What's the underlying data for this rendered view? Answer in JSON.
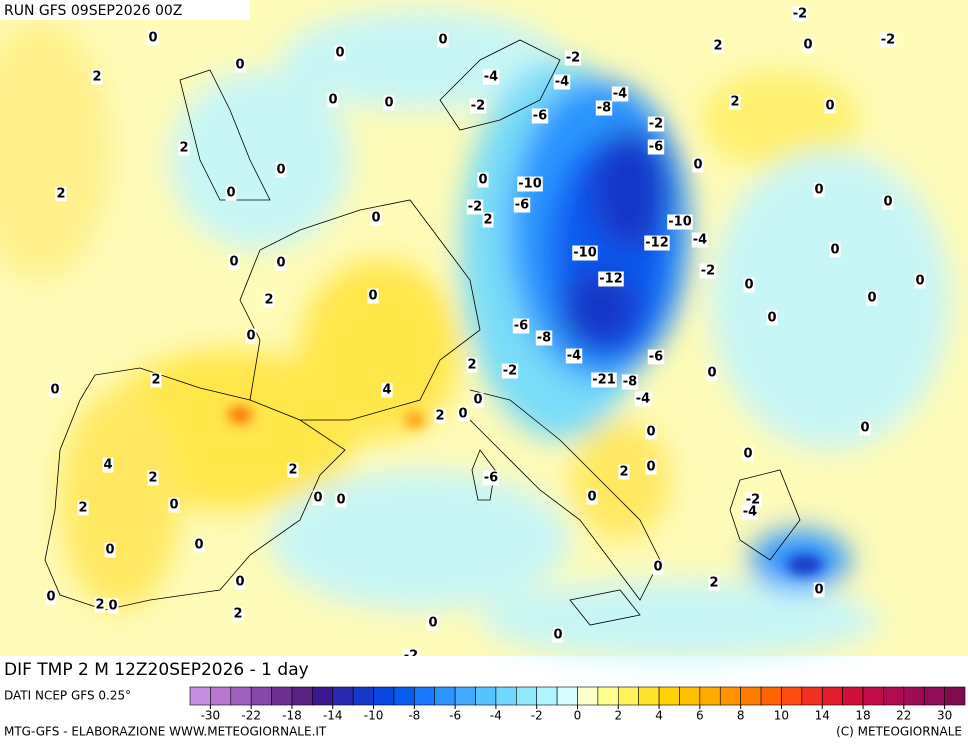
{
  "header": {
    "run": "RUN GFS 09SEP2026 00Z"
  },
  "map": {
    "title": "DIF TMP 2 M 12Z20SEP2026 - 1 day",
    "contour_labels": [
      0,
      0,
      0,
      2,
      0,
      0,
      2,
      0,
      0,
      2,
      -2,
      -2,
      -2,
      2,
      0,
      -4,
      -4,
      -2,
      -6,
      -8,
      -4,
      -2,
      -6,
      0,
      0,
      0,
      -10,
      -6,
      -2,
      2,
      0,
      -10,
      -12,
      -4,
      -2,
      0,
      0,
      -10,
      -12,
      0,
      2,
      0,
      0,
      -6,
      -8,
      0,
      0,
      2,
      -2,
      -4,
      -6,
      0,
      2,
      -21,
      -8,
      0,
      -4,
      0,
      0,
      0,
      4,
      2,
      0,
      2,
      0,
      0,
      4,
      2,
      0,
      0,
      2,
      0,
      -2,
      -4,
      0,
      0,
      2,
      0,
      0,
      2,
      0,
      0,
      -6,
      0,
      0,
      0,
      0,
      2,
      0,
      0,
      2,
      0,
      0,
      0,
      -2,
      2
    ]
  },
  "colorbar": {
    "source": "DATI NCEP GFS 0.25°",
    "colors": [
      "#c890e0",
      "#b878d0",
      "#a060c0",
      "#8848a8",
      "#703090",
      "#582080",
      "#3c1890",
      "#2828b0",
      "#1838c8",
      "#0848e0",
      "#0a5cf0",
      "#1c78ff",
      "#2c94ff",
      "#40acff",
      "#58c4ff",
      "#70d8ff",
      "#90e8ff",
      "#b0f4ff",
      "#d4fcff",
      "#ffffcc",
      "#ffff90",
      "#fff35a",
      "#ffe22c",
      "#ffd200",
      "#ffc000",
      "#ffaa00",
      "#ff9400",
      "#ff7c00",
      "#ff6400",
      "#ff4c10",
      "#f03020",
      "#e01c28",
      "#d01038",
      "#c00c48",
      "#b00c50",
      "#a00c58",
      "#900c58",
      "#800c50"
    ],
    "ticks": [
      -30,
      -22,
      -18,
      -14,
      -10,
      -8,
      -6,
      -4,
      -2,
      0,
      2,
      4,
      6,
      8,
      10,
      14,
      18,
      22,
      30
    ]
  },
  "footer": {
    "left": "MTG-GFS - ELABORAZIONE WWW.METEOGIORNALE.IT",
    "right": "(C) METEOGIORNALE"
  }
}
